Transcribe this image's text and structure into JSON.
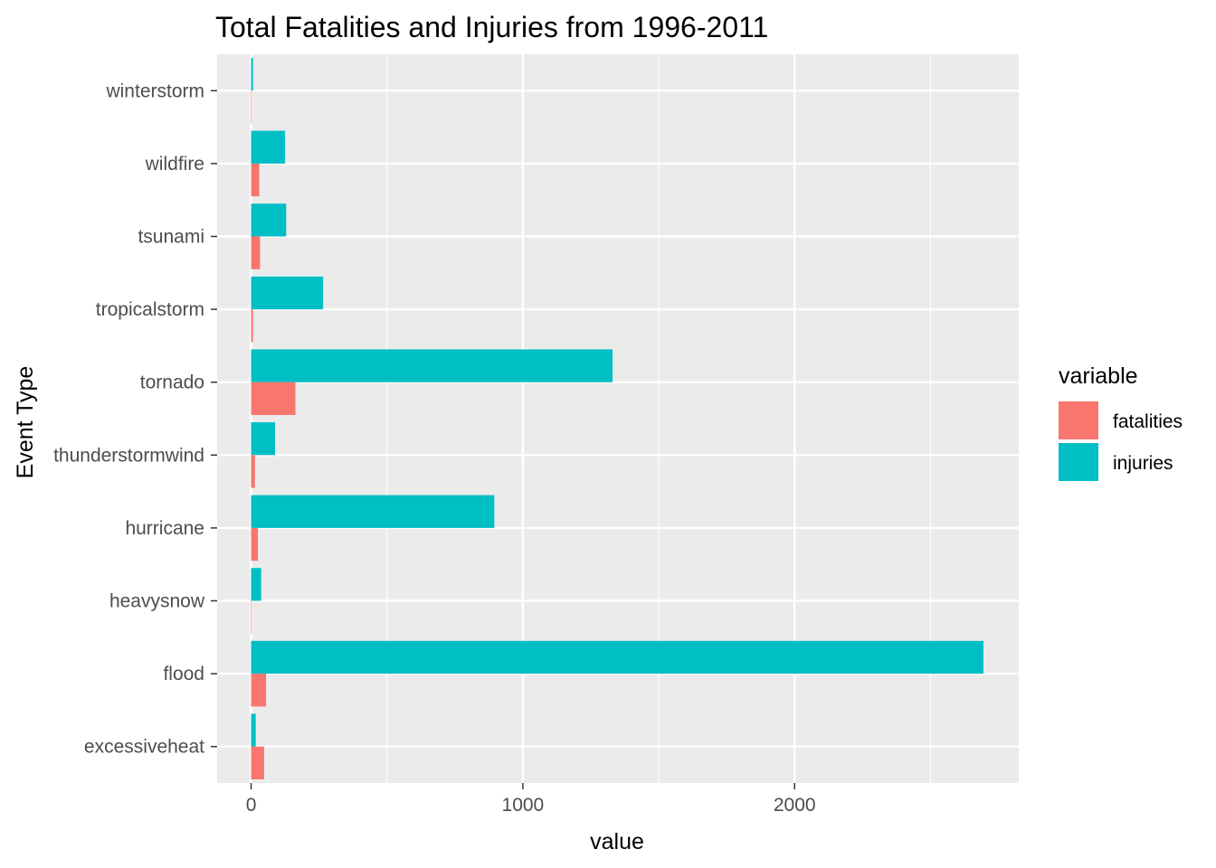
{
  "chart_data": {
    "type": "bar",
    "orientation": "horizontal",
    "grouping": "dodge",
    "title": "Total Fatalities and Injuries from 1996-2011",
    "xlabel": "value",
    "ylabel": "Event Type",
    "xlim": [
      -125,
      2825
    ],
    "x_ticks": [
      0,
      1000,
      2000
    ],
    "x_minor_ticks": [
      500,
      1500,
      2500
    ],
    "grid": true,
    "categories": [
      "winterstorm",
      "wildfire",
      "tsunami",
      "tropicalstorm",
      "tornado",
      "thunderstormwind",
      "hurricane",
      "heavysnow",
      "flood",
      "excessiveheat"
    ],
    "series": [
      {
        "name": "fatalities",
        "color": "#F8766D",
        "values": [
          2,
          30,
          33,
          7,
          163,
          14,
          25,
          2,
          55,
          48
        ]
      },
      {
        "name": "injuries",
        "color": "#00BFC4",
        "values": [
          7,
          125,
          129,
          265,
          1330,
          88,
          895,
          37,
          2695,
          17
        ]
      }
    ],
    "legend": {
      "title": "variable",
      "position": "right"
    },
    "background": "#EBEBEB",
    "gridline_color": "#FFFFFF"
  }
}
